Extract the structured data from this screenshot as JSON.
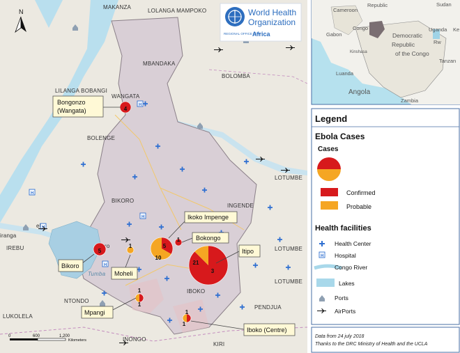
{
  "place_labels": {
    "makanza": "MAKANZA",
    "lolanga": "LOLANGA MAMPOKO",
    "mbandaka": "MBANDAKA",
    "bolomba": "BOLOMBA",
    "lilanga": "LILANGA BOBANGI",
    "wangata": "WANGATA",
    "bolenge": "BOLENGE",
    "bikoro": "BIKORO",
    "ingende": "INGENDE",
    "lotumbe1": "LOTUMBE",
    "lotumbe2": "LOTUMBE",
    "lotumbe3": "LOTUMBE",
    "irebu": "IREBU",
    "ntondo": "NTONDO",
    "lukolela": "LUKOLELA",
    "iboko": "IBOKO",
    "pendjua": "PENDJUA",
    "inongo": "INONGO",
    "kiri": "KIRI",
    "lac_tumba": "Tumba",
    "ebu": "ebu",
    "ranga": "iranga",
    "ro": "ro"
  },
  "logo": {
    "line1": "World Health",
    "line2": "Organization",
    "line3": "REGIONAL OFFICE FOR",
    "line4": "Africa"
  },
  "north_label": "N",
  "outbreak_sites": [
    {
      "label": "Bongonzo\n(Wangata)",
      "confirmed": 4,
      "probable": 0
    },
    {
      "label": "Ikoko Impenge",
      "confirmed": 5,
      "probable": 10
    },
    {
      "label": "Bokongo",
      "confirmed": 1,
      "probable": 0
    },
    {
      "label": "Itipo",
      "confirmed": 21,
      "probable": 3
    },
    {
      "label": "Bikoro",
      "confirmed": 5,
      "probable": 0
    },
    {
      "label": "Moheli",
      "confirmed": 0,
      "probable": 1
    },
    {
      "label": "Mpangi",
      "confirmed": 1,
      "probable": 1
    },
    {
      "label": "Iboko (Centre)",
      "confirmed": 1,
      "probable": 1
    }
  ],
  "callouts": {
    "bongonzo_1": "Bongonzo",
    "bongonzo_2": "(Wangata)",
    "ikoko": "Ikoko Impenge",
    "bokongo": "Bokongo",
    "itipo": "Itipo",
    "bikoro": "Bikoro",
    "moheli": "Moheli",
    "mpangi": "Mpangi",
    "iboko": "Iboko (Centre)"
  },
  "scale": {
    "t0": "0",
    "t1": "600",
    "t2": "1,200",
    "unit": "Kilometers"
  },
  "inset": {
    "cameroon": "Cameroon",
    "republic": "Republic",
    "sudan": "Sudan",
    "gabon": "Gabon",
    "congo": "Congo",
    "drc1": "Democratic",
    "drc2": "Republic",
    "drc3": "of the Congo",
    "kinshasa": "Kinshasa",
    "uganda": "Uganda",
    "ke": "Ke",
    "rw": "Rw",
    "tanzania": "Tanzan",
    "luanda": "Luanda",
    "angola": "Angola",
    "zambia": "Zambia"
  },
  "legend": {
    "title": "Legend",
    "ebola": "Ebola Cases",
    "cases": "Cases",
    "confirmed": "Confirmed",
    "probable": "Probable",
    "facilities": "Health facilities",
    "health_center": "Health Center",
    "hospital": "Hospital",
    "river": "Congo River",
    "lakes": "Lakes",
    "ports": "Ports",
    "airports": "AirPorts",
    "colors": {
      "confirmed": "#d7191c",
      "probable": "#f5a623",
      "river": "#a8d8ea",
      "lake": "#a8d8ea",
      "health": "#2e6fd1"
    }
  },
  "source": {
    "line1": "Data from 24 july 2018",
    "line2": "Thanks to the DRC Ministry of Health and the UCLA"
  }
}
